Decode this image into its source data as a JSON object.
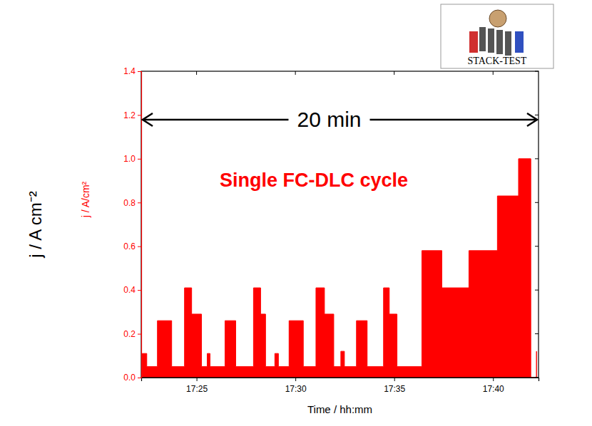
{
  "chart_data": {
    "type": "area",
    "line_style": "step",
    "color": "#ff0000",
    "x_label": "Time / hh:mm",
    "y_label": "j / A cm⁻²",
    "y_label_secondary": "j / A/cm²",
    "annotations": [
      "20 min",
      "Single FC-DLC cycle"
    ],
    "logo": "STACK-TEST",
    "x": [
      1042.25,
      1042.48,
      1043.02,
      1043.74,
      1044.39,
      1044.75,
      1045.25,
      1045.54,
      1045.68,
      1046.44,
      1046.98,
      1047.88,
      1048.24,
      1048.49,
      1048.96,
      1049.14,
      1049.68,
      1050.4,
      1051.04,
      1051.47,
      1051.94,
      1052.3,
      1052.48,
      1053.09,
      1053.63,
      1054.46,
      1054.75,
      1055.14,
      1056.4,
      1057.41,
      1058.78,
      1060.22,
      1061.29,
      1061.91,
      1062.2
    ],
    "values": [
      0.11,
      0.05,
      0.26,
      0.05,
      0.41,
      0.29,
      0.05,
      0.11,
      0.05,
      0.26,
      0.05,
      0.41,
      0.29,
      0.05,
      0.11,
      0.05,
      0.26,
      0.05,
      0.41,
      0.29,
      0.05,
      0.12,
      0.05,
      0.26,
      0.05,
      0.41,
      0.29,
      0.05,
      0.58,
      0.41,
      0.58,
      0.83,
      1.0,
      0.0,
      0.12
    ],
    "xlim": [
      1042.2,
      1062.3
    ],
    "xticks": [
      {
        "value": 1045,
        "label": "17:25"
      },
      {
        "value": 1050,
        "label": "17:30"
      },
      {
        "value": 1055,
        "label": "17:35"
      },
      {
        "value": 1060,
        "label": "17:40"
      }
    ],
    "ylim": [
      0,
      1.4
    ],
    "yticks": [
      {
        "value": 0,
        "label": "0.0"
      },
      0.2,
      0.4,
      0.6,
      0.8,
      {
        "value": 1,
        "label": "1.0"
      },
      1.2,
      1.4
    ],
    "grid": false
  }
}
